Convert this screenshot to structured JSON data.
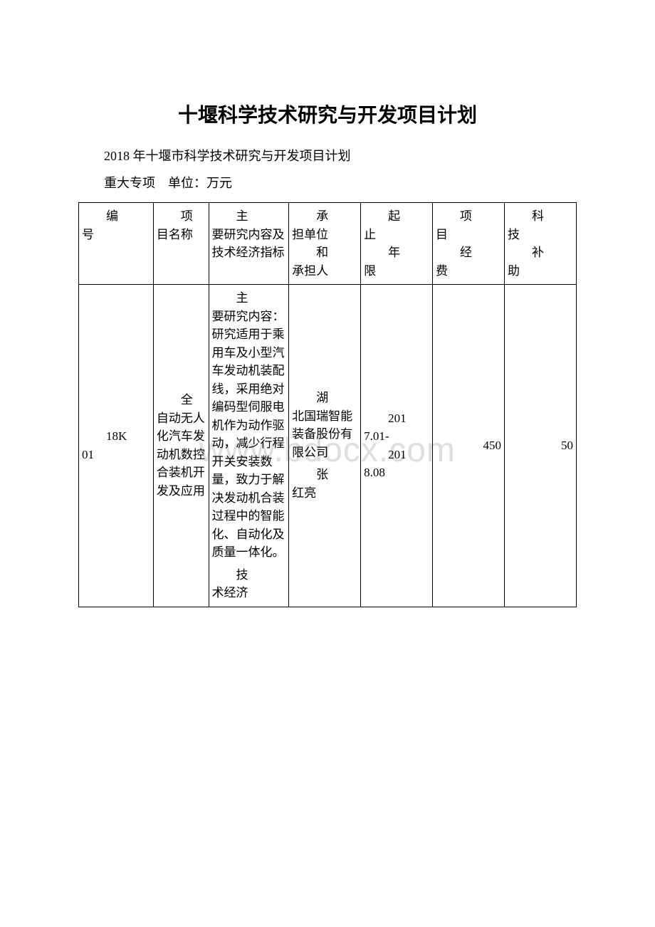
{
  "title": "十堰科学技术研究与开发项目计划",
  "subtitle": "2018 年十堰市科学技术研究与开发项目计划",
  "note": "重大专项　单位：万元",
  "watermark": "www.bdocx.com",
  "table": {
    "header": {
      "col1_line1": "编",
      "col1_line2": "号",
      "col2_line1": "项",
      "col2_line2": "目名称",
      "col3_line1": "主",
      "col3_line2": "要研究内容及技术经济指标",
      "col4_line1": "承",
      "col4_line2": "担单位",
      "col4_line3": "和",
      "col4_line4": "承担人",
      "col5_line1": "起",
      "col5_line2": "止",
      "col5_line3": "年",
      "col5_line4": "限",
      "col6_line1": "项",
      "col6_line2": "目",
      "col6_line3": "经",
      "col6_line4": "费",
      "col7_line1": "科",
      "col7_line2": "技",
      "col7_line3": "补",
      "col7_line4": "助"
    },
    "row1": {
      "col1_line1": "18K",
      "col1_line2": "01",
      "col2_line1": "全",
      "col2_line2": "自动无人化汽车发动机数控合装机开发及应用",
      "col3_line1": "主",
      "col3_line2": "要研究内容：研究适用于乘用车及小型汽车发动机装配线，采用绝对编码型伺服电机作为动作驱动，减少行程开关安装数量，致力于解决发动机合装过程中的智能化、自动化及质量一体化。",
      "col3_line3": "技",
      "col3_line4": "术经济",
      "col4_line1": "湖",
      "col4_line2": "北国瑞智能装备股份有限公司",
      "col4_line3": "张",
      "col4_line4": "红亮",
      "col5_line1": "201",
      "col5_line2": "7.01-",
      "col5_line3": "201",
      "col5_line4": "8.08",
      "col6": "450",
      "col7": "50"
    }
  }
}
